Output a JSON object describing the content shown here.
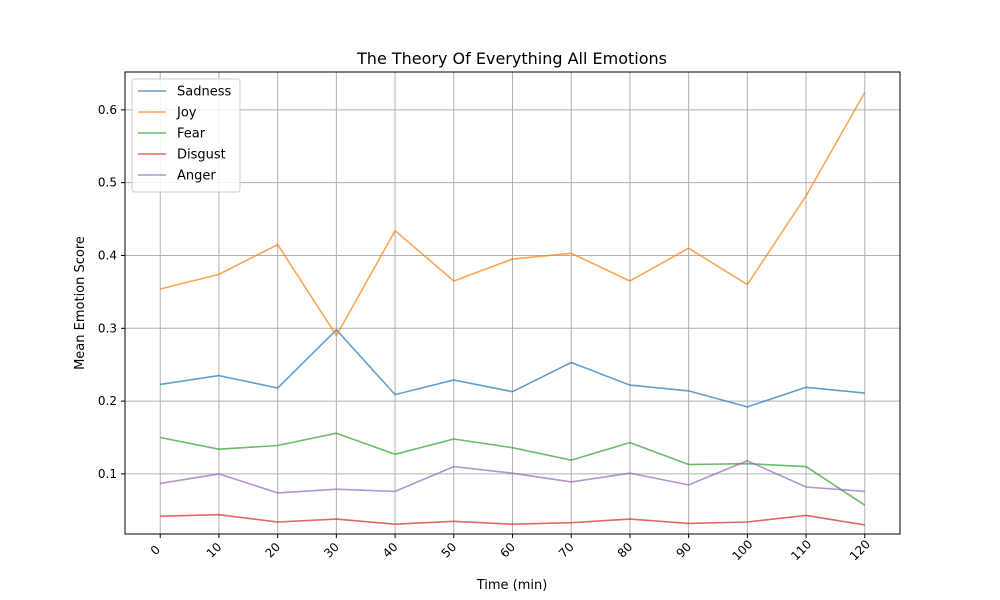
{
  "chart_data": {
    "type": "line",
    "title": "The Theory Of Everything All Emotions",
    "xlabel": "Time (min)",
    "ylabel": "Mean Emotion Score",
    "x": [
      0,
      10,
      20,
      30,
      40,
      50,
      60,
      70,
      80,
      90,
      100,
      110,
      120
    ],
    "xlim": [
      -6,
      126
    ],
    "ylim": [
      0.0175,
      0.652
    ],
    "yticks": [
      0.1,
      0.2,
      0.3,
      0.4,
      0.5,
      0.6
    ],
    "grid": true,
    "legend_position": "upper-left",
    "series": [
      {
        "name": "Sadness",
        "color": "#1f77b4",
        "values": [
          0.223,
          0.235,
          0.218,
          0.298,
          0.209,
          0.229,
          0.213,
          0.253,
          0.222,
          0.214,
          0.192,
          0.219,
          0.211
        ]
      },
      {
        "name": "Joy",
        "color": "#ff7f0e",
        "values": [
          0.354,
          0.374,
          0.415,
          0.29,
          0.434,
          0.365,
          0.395,
          0.403,
          0.365,
          0.41,
          0.36,
          0.482,
          0.624
        ]
      },
      {
        "name": "Fear",
        "color": "#2ca02c",
        "values": [
          0.15,
          0.134,
          0.139,
          0.156,
          0.127,
          0.148,
          0.136,
          0.119,
          0.143,
          0.113,
          0.114,
          0.11,
          0.057
        ]
      },
      {
        "name": "Disgust",
        "color": "#d62728",
        "values": [
          0.042,
          0.044,
          0.034,
          0.038,
          0.031,
          0.035,
          0.031,
          0.033,
          0.038,
          0.032,
          0.034,
          0.043,
          0.03
        ]
      },
      {
        "name": "Anger",
        "color": "#9467bd",
        "values": [
          0.087,
          0.1,
          0.074,
          0.079,
          0.076,
          0.11,
          0.101,
          0.089,
          0.101,
          0.085,
          0.118,
          0.082,
          0.076
        ]
      }
    ]
  }
}
